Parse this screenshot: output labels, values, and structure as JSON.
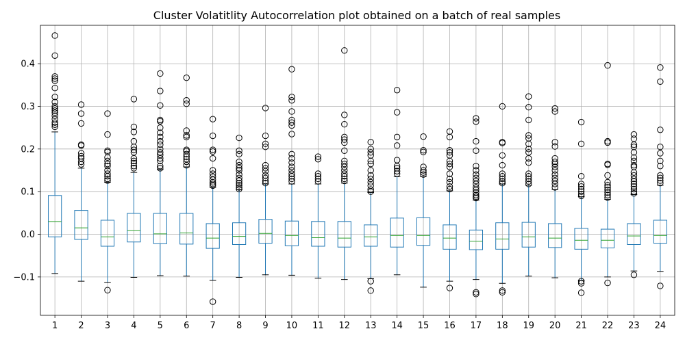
{
  "chart_data": {
    "type": "boxplot",
    "title": "Cluster Volatitlity Autocorrelation plot obtained on a batch of real samples",
    "xlabel": "",
    "ylabel": "",
    "ylim": [
      -0.19,
      0.49
    ],
    "yticks": [
      -0.1,
      0.0,
      0.1,
      0.2,
      0.3,
      0.4
    ],
    "ytick_labels": [
      "−0.1",
      "0.0",
      "0.1",
      "0.2",
      "0.3",
      "0.4"
    ],
    "grid": true,
    "box_color": "#1f77b4",
    "median_color": "#2ca02c",
    "categories": [
      "1",
      "2",
      "3",
      "4",
      "5",
      "6",
      "7",
      "8",
      "9",
      "10",
      "11",
      "12",
      "13",
      "14",
      "15",
      "16",
      "17",
      "18",
      "19",
      "20",
      "21",
      "22",
      "23",
      "24"
    ],
    "boxes": [
      {
        "q1": -0.006,
        "median": 0.03,
        "q3": 0.091,
        "whislo": -0.092,
        "whishi": 0.24,
        "fliers": [
          0.466,
          0.419,
          0.37,
          0.365,
          0.36,
          0.343,
          0.322,
          0.31,
          0.3,
          0.295,
          0.29,
          0.285,
          0.278,
          0.27,
          0.262,
          0.257,
          0.252
        ]
      },
      {
        "q1": -0.012,
        "median": 0.015,
        "q3": 0.056,
        "whislo": -0.11,
        "whishi": 0.155,
        "fliers": [
          0.304,
          0.283,
          0.26,
          0.21,
          0.208,
          0.19,
          0.183,
          0.178,
          0.17,
          0.164
        ]
      },
      {
        "q1": -0.028,
        "median": -0.006,
        "q3": 0.033,
        "whislo": -0.113,
        "whishi": 0.122,
        "fliers": [
          0.283,
          0.234,
          0.196,
          0.193,
          0.18,
          0.172,
          0.165,
          0.16,
          0.15,
          0.142,
          0.136,
          0.13,
          0.126,
          -0.131
        ]
      },
      {
        "q1": -0.018,
        "median": 0.009,
        "q3": 0.049,
        "whislo": -0.101,
        "whishi": 0.145,
        "fliers": [
          0.317,
          0.252,
          0.24,
          0.218,
          0.205,
          0.198,
          0.192,
          0.178,
          0.172,
          0.167,
          0.16,
          0.155
        ]
      },
      {
        "q1": -0.022,
        "median": 0.001,
        "q3": 0.049,
        "whislo": -0.097,
        "whishi": 0.152,
        "fliers": [
          0.377,
          0.336,
          0.302,
          0.268,
          0.265,
          0.25,
          0.238,
          0.228,
          0.218,
          0.21,
          0.2,
          0.192,
          0.186,
          0.178,
          0.172,
          0.16,
          0.155
        ]
      },
      {
        "q1": -0.023,
        "median": 0.003,
        "q3": 0.049,
        "whislo": -0.098,
        "whishi": 0.158,
        "fliers": [
          0.367,
          0.314,
          0.306,
          0.243,
          0.232,
          0.228,
          0.198,
          0.195,
          0.188,
          0.182,
          0.176,
          0.17,
          0.162
        ]
      },
      {
        "q1": -0.033,
        "median": -0.009,
        "q3": 0.025,
        "whislo": -0.108,
        "whishi": 0.11,
        "fliers": [
          0.27,
          0.231,
          0.198,
          0.194,
          0.178,
          0.15,
          0.142,
          0.135,
          0.128,
          0.122,
          0.118,
          0.114,
          -0.158
        ]
      },
      {
        "q1": -0.024,
        "median": -0.005,
        "q3": 0.027,
        "whislo": -0.101,
        "whishi": 0.105,
        "fliers": [
          0.226,
          0.196,
          0.188,
          0.17,
          0.162,
          0.155,
          0.15,
          0.14,
          0.132,
          0.126,
          0.12,
          0.115,
          0.11,
          0.106
        ]
      },
      {
        "q1": -0.021,
        "median": 0.002,
        "q3": 0.035,
        "whislo": -0.095,
        "whishi": 0.118,
        "fliers": [
          0.296,
          0.231,
          0.212,
          0.205,
          0.162,
          0.155,
          0.148,
          0.138,
          0.132,
          0.125,
          0.12
        ]
      },
      {
        "q1": -0.027,
        "median": -0.003,
        "q3": 0.031,
        "whislo": -0.096,
        "whishi": 0.118,
        "fliers": [
          0.387,
          0.322,
          0.314,
          0.288,
          0.268,
          0.262,
          0.255,
          0.235,
          0.188,
          0.178,
          0.168,
          0.158,
          0.15,
          0.142,
          0.136,
          0.13,
          0.124
        ]
      },
      {
        "q1": -0.028,
        "median": -0.008,
        "q3": 0.03,
        "whislo": -0.103,
        "whishi": 0.118,
        "fliers": [
          0.182,
          0.176,
          0.142,
          0.136,
          0.13,
          0.124
        ]
      },
      {
        "q1": -0.03,
        "median": -0.009,
        "q3": 0.03,
        "whislo": -0.106,
        "whishi": 0.12,
        "fliers": [
          0.431,
          0.28,
          0.258,
          0.228,
          0.222,
          0.215,
          0.196,
          0.172,
          0.165,
          0.158,
          0.15,
          0.142,
          0.136,
          0.13,
          0.125
        ]
      },
      {
        "q1": -0.028,
        "median": -0.006,
        "q3": 0.022,
        "whislo": -0.104,
        "whishi": 0.098,
        "fliers": [
          0.216,
          0.2,
          0.192,
          0.185,
          0.172,
          0.165,
          0.15,
          0.138,
          0.13,
          0.122,
          0.114,
          0.105,
          0.1,
          -0.11,
          -0.132
        ]
      },
      {
        "q1": -0.03,
        "median": -0.003,
        "q3": 0.038,
        "whislo": -0.095,
        "whishi": 0.135,
        "fliers": [
          0.338,
          0.286,
          0.228,
          0.208,
          0.174,
          0.16,
          0.155,
          0.148,
          0.142
        ]
      },
      {
        "q1": -0.026,
        "median": -0.003,
        "q3": 0.039,
        "whislo": -0.124,
        "whishi": 0.135,
        "fliers": [
          0.229,
          0.197,
          0.193,
          0.158,
          0.15,
          0.145,
          0.14
        ]
      },
      {
        "q1": -0.035,
        "median": -0.009,
        "q3": 0.022,
        "whislo": -0.11,
        "whishi": 0.102,
        "fliers": [
          0.241,
          0.228,
          0.197,
          0.192,
          0.185,
          0.172,
          0.165,
          0.158,
          0.142,
          0.13,
          0.122,
          0.112,
          0.106,
          -0.126
        ]
      },
      {
        "q1": -0.036,
        "median": -0.016,
        "q3": 0.01,
        "whislo": -0.106,
        "whishi": 0.08,
        "fliers": [
          0.272,
          0.264,
          0.218,
          0.196,
          0.16,
          0.15,
          0.14,
          0.132,
          0.125,
          0.118,
          0.11,
          0.104,
          0.098,
          0.092,
          0.088,
          0.085,
          -0.136,
          -0.14
        ]
      },
      {
        "q1": -0.035,
        "median": -0.011,
        "q3": 0.027,
        "whislo": -0.115,
        "whishi": 0.118,
        "fliers": [
          0.3,
          0.216,
          0.214,
          0.185,
          0.162,
          0.142,
          0.136,
          0.13,
          0.124,
          0.12,
          -0.132,
          -0.136
        ]
      },
      {
        "q1": -0.03,
        "median": -0.006,
        "q3": 0.028,
        "whislo": -0.098,
        "whishi": 0.115,
        "fliers": [
          0.323,
          0.298,
          0.268,
          0.232,
          0.225,
          0.212,
          0.2,
          0.192,
          0.178,
          0.168,
          0.142,
          0.136,
          0.13,
          0.124,
          0.118
        ]
      },
      {
        "q1": -0.031,
        "median": -0.009,
        "q3": 0.025,
        "whislo": -0.102,
        "whishi": 0.105,
        "fliers": [
          0.295,
          0.288,
          0.216,
          0.206,
          0.178,
          0.17,
          0.165,
          0.158,
          0.15,
          0.14,
          0.132,
          0.125,
          0.118,
          0.11
        ]
      },
      {
        "q1": -0.035,
        "median": -0.014,
        "q3": 0.014,
        "whislo": -0.108,
        "whishi": 0.088,
        "fliers": [
          0.263,
          0.212,
          0.136,
          0.118,
          0.112,
          0.106,
          0.1,
          0.094,
          0.09,
          -0.11,
          -0.115,
          -0.137
        ]
      },
      {
        "q1": -0.032,
        "median": -0.014,
        "q3": 0.012,
        "whislo": -0.1,
        "whishi": 0.082,
        "fliers": [
          0.396,
          0.218,
          0.215,
          0.165,
          0.163,
          0.138,
          0.122,
          0.115,
          0.11,
          0.104,
          0.098,
          0.092,
          0.086,
          -0.114
        ]
      },
      {
        "q1": -0.024,
        "median": -0.004,
        "q3": 0.025,
        "whislo": -0.086,
        "whishi": 0.093,
        "fliers": [
          0.234,
          0.224,
          0.21,
          0.205,
          0.192,
          0.18,
          0.172,
          0.162,
          0.158,
          0.145,
          0.138,
          0.13,
          0.124,
          0.118,
          0.112,
          0.106,
          0.1,
          0.096,
          -0.095
        ]
      },
      {
        "q1": -0.021,
        "median": -0.003,
        "q3": 0.033,
        "whislo": -0.087,
        "whishi": 0.115,
        "fliers": [
          0.391,
          0.358,
          0.245,
          0.205,
          0.19,
          0.172,
          0.16,
          0.138,
          0.132,
          0.126,
          0.12,
          -0.121
        ]
      }
    ]
  }
}
